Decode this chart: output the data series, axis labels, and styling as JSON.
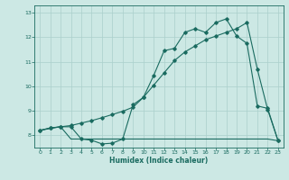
{
  "xlabel": "Humidex (Indice chaleur)",
  "bg_color": "#cce8e4",
  "grid_color": "#aacfcb",
  "line_color": "#1a6b60",
  "xlim": [
    -0.5,
    23.5
  ],
  "ylim": [
    7.5,
    13.3
  ],
  "xticks": [
    0,
    1,
    2,
    3,
    4,
    5,
    6,
    7,
    8,
    9,
    10,
    11,
    12,
    13,
    14,
    15,
    16,
    17,
    18,
    19,
    20,
    21,
    22,
    23
  ],
  "yticks": [
    8,
    9,
    10,
    11,
    12,
    13
  ],
  "line1_x": [
    0,
    1,
    2,
    3,
    4,
    5,
    6,
    7,
    8,
    9,
    10,
    11,
    12,
    13,
    14,
    15,
    16,
    17,
    18,
    19,
    20,
    21,
    22,
    23
  ],
  "line1_y": [
    8.2,
    8.3,
    8.35,
    8.35,
    7.85,
    7.8,
    7.65,
    7.68,
    7.85,
    9.25,
    9.55,
    10.45,
    11.45,
    11.55,
    12.2,
    12.35,
    12.2,
    12.6,
    12.75,
    12.05,
    11.75,
    9.2,
    9.1,
    7.78
  ],
  "line2_x": [
    0,
    1,
    2,
    3,
    4,
    5,
    6,
    7,
    8,
    9,
    10,
    11,
    12,
    13,
    14,
    15,
    16,
    17,
    18,
    19,
    20,
    21,
    22,
    23
  ],
  "line2_y": [
    8.2,
    8.28,
    8.35,
    7.85,
    7.85,
    7.85,
    7.85,
    7.85,
    7.85,
    7.85,
    7.85,
    7.85,
    7.85,
    7.85,
    7.85,
    7.85,
    7.85,
    7.85,
    7.85,
    7.85,
    7.85,
    7.85,
    7.85,
    7.78
  ],
  "line3_x": [
    0,
    1,
    2,
    3,
    4,
    5,
    6,
    7,
    8,
    9,
    10,
    11,
    12,
    13,
    14,
    15,
    16,
    17,
    18,
    19,
    20,
    21,
    22,
    23
  ],
  "line3_y": [
    8.2,
    8.3,
    8.35,
    8.4,
    8.5,
    8.6,
    8.72,
    8.85,
    8.98,
    9.15,
    9.55,
    10.05,
    10.55,
    11.05,
    11.4,
    11.65,
    11.9,
    12.05,
    12.2,
    12.35,
    12.6,
    10.7,
    9.05,
    7.78
  ]
}
